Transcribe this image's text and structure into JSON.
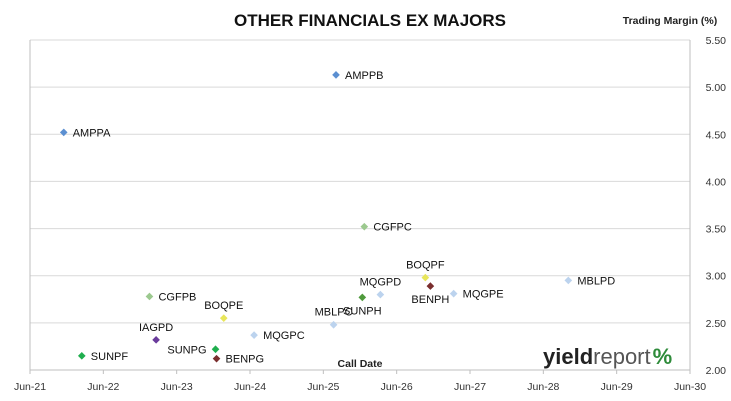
{
  "chart_data": {
    "type": "scatter",
    "title": "OTHER FINANCIALS EX MAJORS",
    "xlabel": "Call Date",
    "ylabel": "Trading Margin (%)",
    "x_axis": {
      "type": "date",
      "min": "2021-06-30",
      "max": "2030-06-30",
      "ticks": [
        "Jun-21",
        "Jun-22",
        "Jun-23",
        "Jun-24",
        "Jun-25",
        "Jun-26",
        "Jun-27",
        "Jun-28",
        "Jun-29",
        "Jun-30"
      ]
    },
    "y_axis": {
      "min": 2.0,
      "max": 5.5,
      "position": "right",
      "ticks": [
        "2.00",
        "2.50",
        "3.00",
        "3.50",
        "4.00",
        "4.50",
        "5.00",
        "5.50"
      ]
    },
    "grid": "horizontal",
    "points": [
      {
        "label": "AMPPB",
        "x": "2025-09-01",
        "y": 5.13,
        "color": "#5b8fd1",
        "label_side": "right"
      },
      {
        "label": "AMPPA",
        "x": "2021-12-15",
        "y": 4.52,
        "color": "#5b8fd1",
        "label_side": "right"
      },
      {
        "label": "CGFPC",
        "x": "2026-01-20",
        "y": 3.52,
        "color": "#9cc98f",
        "label_side": "right"
      },
      {
        "label": "BOQPF",
        "x": "2026-11-20",
        "y": 2.98,
        "color": "#e8e65a",
        "label_side": "above"
      },
      {
        "label": "BENPH",
        "x": "2026-12-15",
        "y": 2.89,
        "color": "#7a2e2e",
        "label_side": "below"
      },
      {
        "label": "MQGPD",
        "x": "2026-04-10",
        "y": 2.8,
        "color": "#bcd3ee",
        "label_side": "above"
      },
      {
        "label": "SUNPH",
        "x": "2026-01-10",
        "y": 2.77,
        "color": "#4f9a3c",
        "label_side": "below"
      },
      {
        "label": "MQGPE",
        "x": "2027-04-10",
        "y": 2.81,
        "color": "#bcd3ee",
        "label_side": "right"
      },
      {
        "label": "MBLPD",
        "x": "2028-11-01",
        "y": 2.95,
        "color": "#bcd3ee",
        "label_side": "right"
      },
      {
        "label": "CGFPB",
        "x": "2023-02-15",
        "y": 2.78,
        "color": "#9cc98f",
        "label_side": "right"
      },
      {
        "label": "BOQPE",
        "x": "2024-02-20",
        "y": 2.55,
        "color": "#e8e65a",
        "label_side": "above"
      },
      {
        "label": "MBLPC",
        "x": "2025-08-20",
        "y": 2.48,
        "color": "#bcd3ee",
        "label_side": "above"
      },
      {
        "label": "MQGPC",
        "x": "2024-07-20",
        "y": 2.37,
        "color": "#bcd3ee",
        "label_side": "right"
      },
      {
        "label": "IAGPD",
        "x": "2023-03-20",
        "y": 2.32,
        "color": "#6a3b9c",
        "label_side": "above"
      },
      {
        "label": "SUNPF",
        "x": "2022-03-15",
        "y": 2.15,
        "color": "#1fae4e",
        "label_side": "right"
      },
      {
        "label": "SUNPG",
        "x": "2024-01-10",
        "y": 2.22,
        "color": "#1fae4e",
        "label_side": "left"
      },
      {
        "label": "BENPG",
        "x": "2024-01-15",
        "y": 2.12,
        "color": "#7a2e2e",
        "label_side": "right"
      }
    ]
  },
  "logo": {
    "part1": "yield",
    "part2": "report",
    "part3": "%"
  }
}
